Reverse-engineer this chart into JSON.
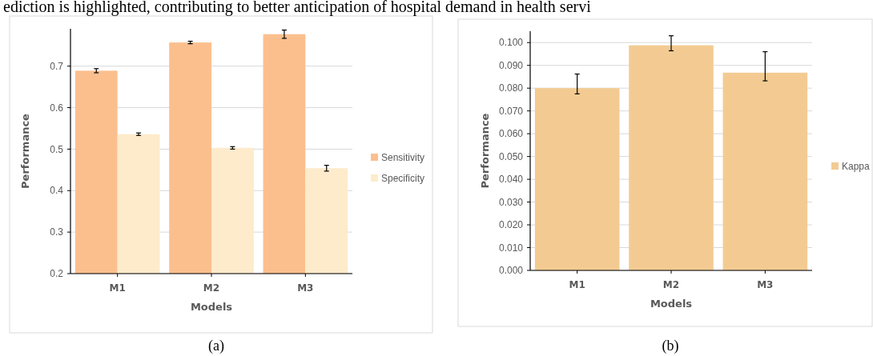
{
  "chart_data": [
    {
      "type": "bar",
      "xlabel": "Models",
      "ylabel": "Performance",
      "categories": [
        "M1",
        "M2",
        "M3"
      ],
      "series": [
        {
          "name": "Sensitivity",
          "color": "#fbbf8e",
          "values": [
            0.689,
            0.757,
            0.777
          ],
          "errors": [
            0.005,
            0.003,
            0.01
          ]
        },
        {
          "name": "Specificity",
          "color": "#fdebcb",
          "values": [
            0.536,
            0.503,
            0.454
          ],
          "errors": [
            0.003,
            0.003,
            0.007
          ]
        }
      ],
      "ylim": [
        0.2,
        0.79
      ],
      "yticks": [
        0.2,
        0.3,
        0.4,
        0.5,
        0.6,
        0.7
      ],
      "grid": "y",
      "legend": "right",
      "annotations": [
        "ediction is highlighted, contributing to better anticipation of hospital demand in health servi",
        "(a)"
      ]
    },
    {
      "type": "bar",
      "xlabel": "Models",
      "ylabel": "Performance",
      "categories": [
        "M1",
        "M2",
        "M3"
      ],
      "series": [
        {
          "name": "Kappa",
          "color": "#f3cb92",
          "values": [
            0.08,
            0.0988,
            0.0868
          ],
          "errors": [
            [
              0.0775,
              0.0862
            ],
            [
              0.0964,
              0.103
            ],
            [
              0.0832,
              0.096
            ]
          ]
        }
      ],
      "ylim": [
        0,
        0.105
      ],
      "yticks": [
        {
          "value": 0,
          "label": "0.000"
        },
        {
          "value": 0.01,
          "label": "0.010"
        },
        {
          "value": 0.02,
          "label": "0.020"
        },
        {
          "value": 0.03,
          "label": "0.030"
        },
        {
          "value": 0.04,
          "label": "0.040"
        },
        {
          "value": 0.05,
          "label": "0.050"
        },
        {
          "value": 0.06,
          "label": "0.060"
        },
        {
          "value": 0.07,
          "label": "0.070"
        },
        {
          "value": 0.08,
          "label": "0.080"
        },
        {
          "value": 0.09,
          "label": "0.090"
        },
        {
          "value": 0.1,
          "label": "0.100"
        }
      ],
      "grid": "y",
      "legend": "right",
      "annotations": [
        "(b)"
      ]
    }
  ]
}
